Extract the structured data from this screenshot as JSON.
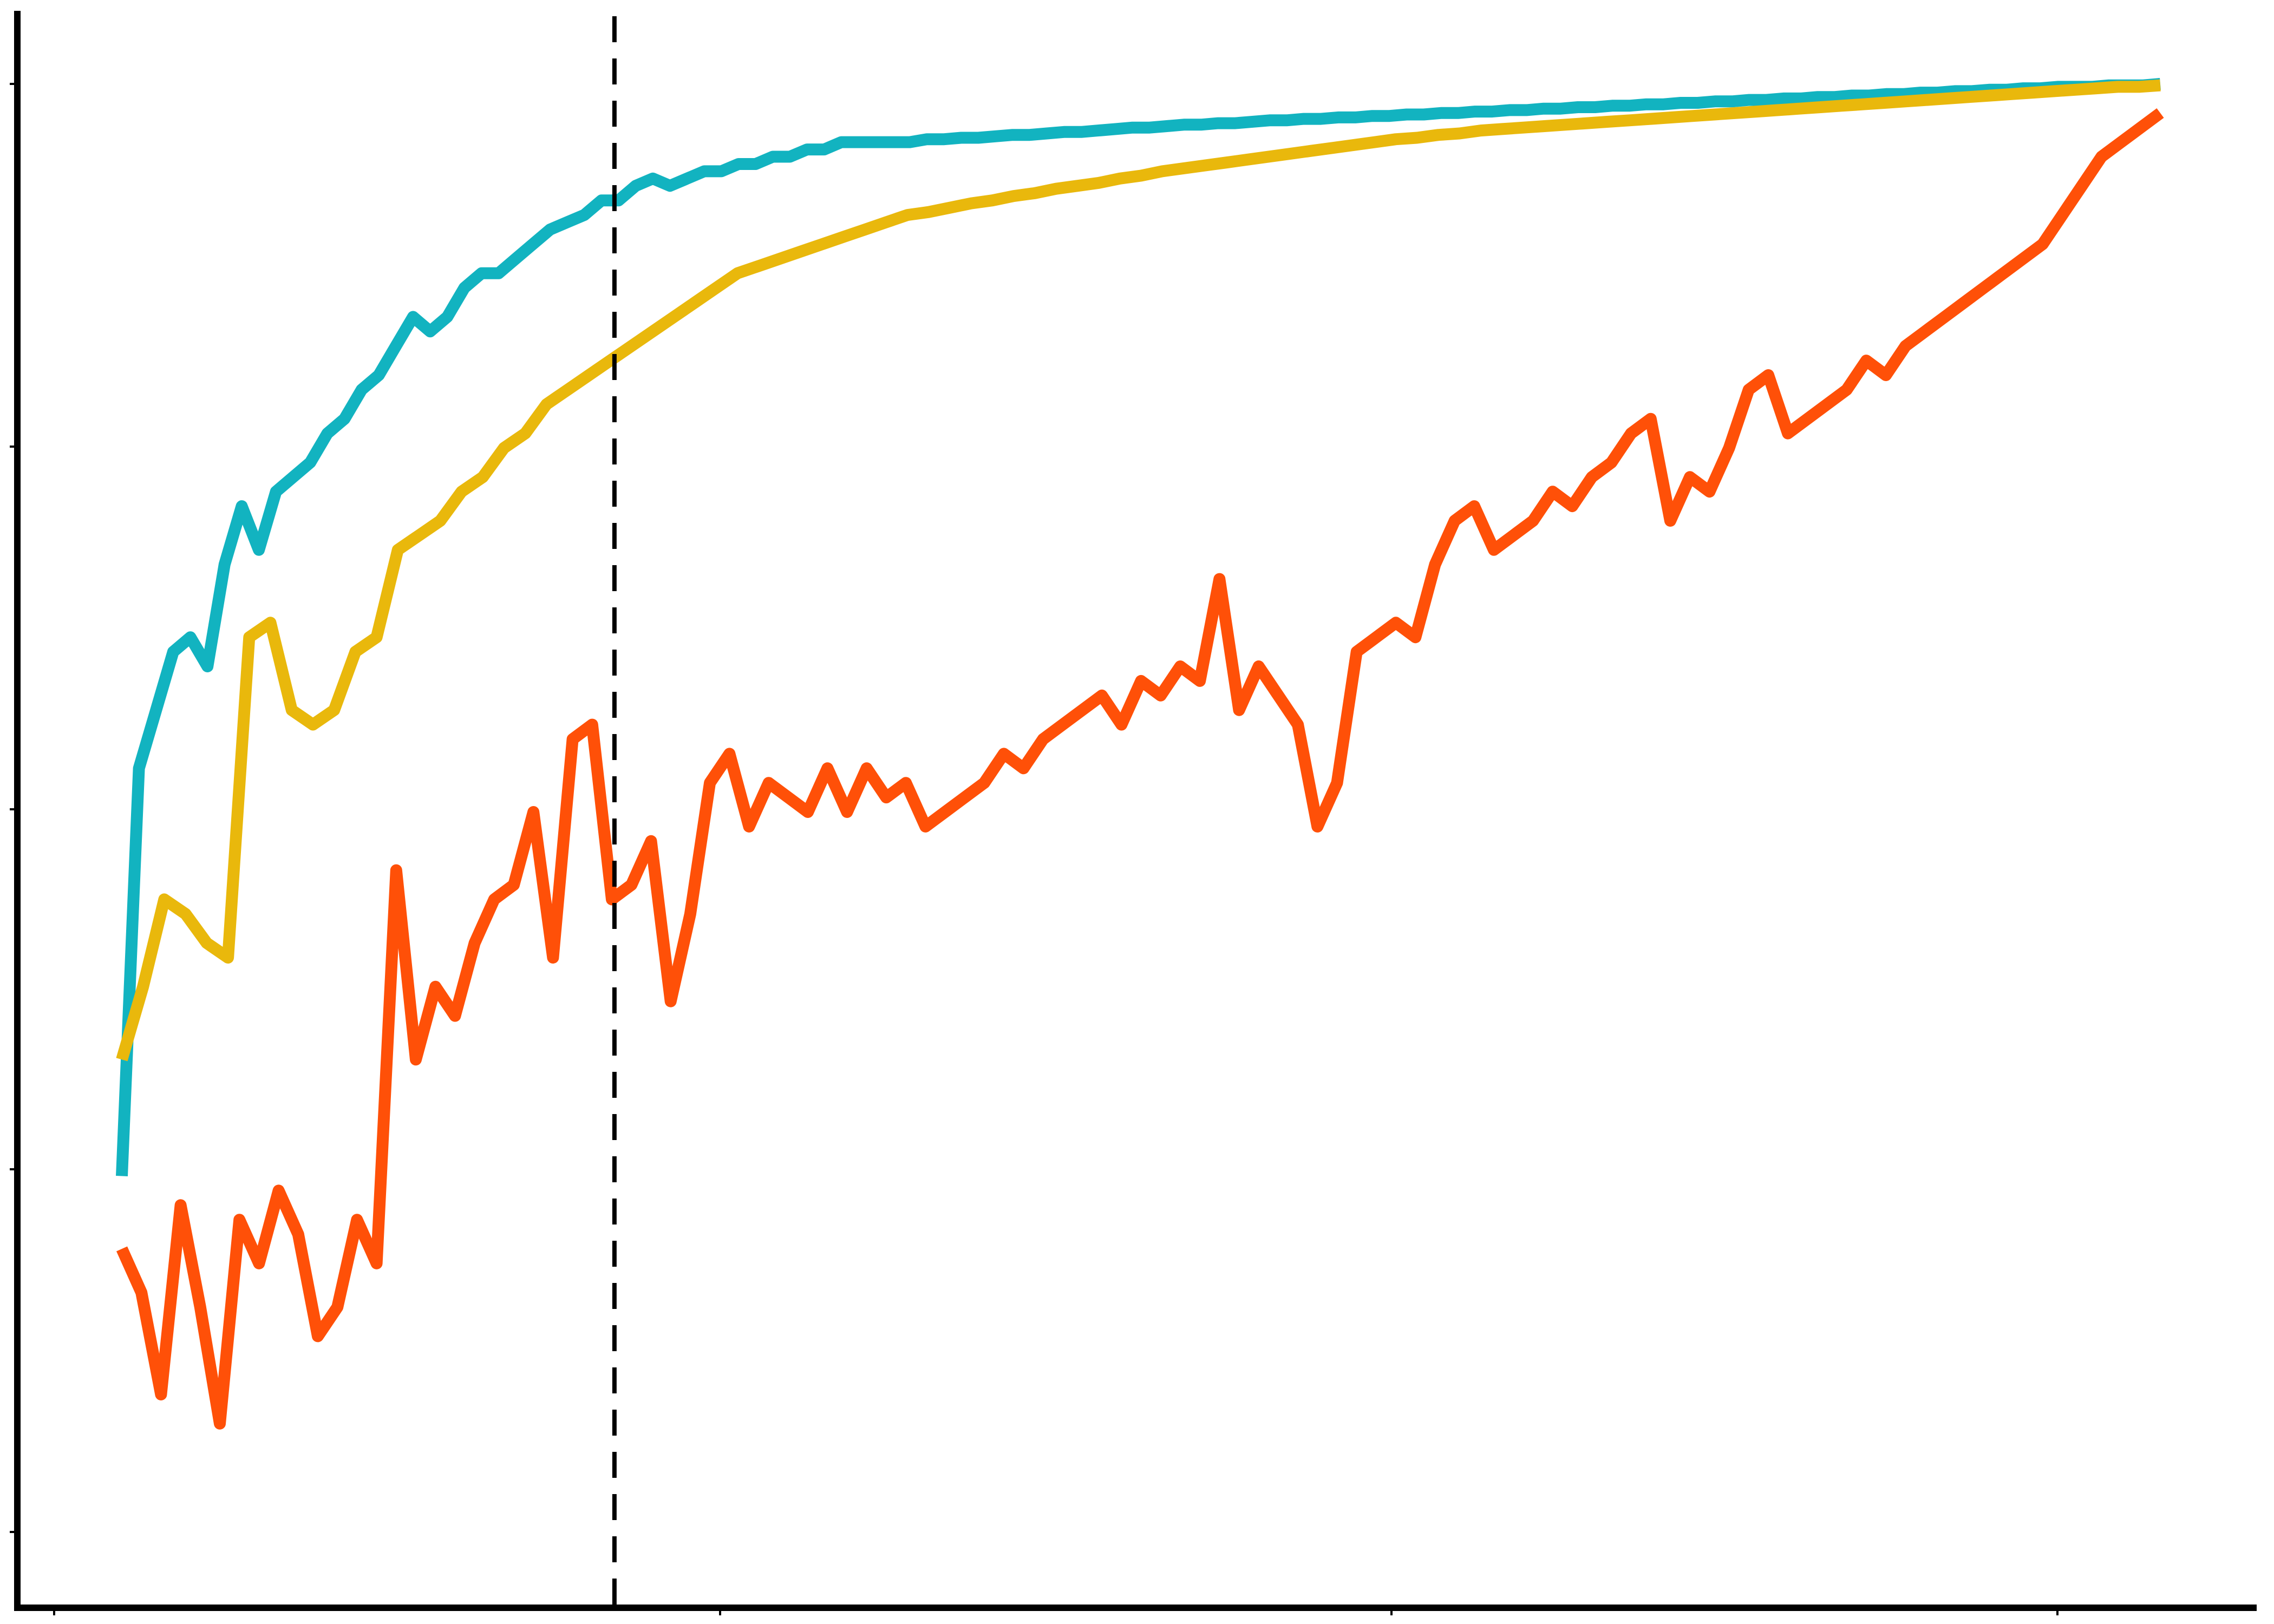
{
  "chart_data": {
    "type": "line",
    "title": "",
    "xlabel": "",
    "ylabel": "",
    "grid": false,
    "legend": "none",
    "x_range": [
      0,
      168
    ],
    "y_range": [
      0,
      1
    ],
    "x_ticks": [
      0,
      50,
      100,
      150
    ],
    "y_ticks": [
      0,
      0.22,
      0.44,
      0.66,
      0.88
    ],
    "vline_x": 40.6,
    "series": [
      {
        "color": "#12b3c0",
        "values": [
          0.25,
          0.53,
          0.57,
          0.61,
          0.62,
          0.6,
          0.67,
          0.71,
          0.68,
          0.72,
          0.73,
          0.74,
          0.76,
          0.77,
          0.79,
          0.8,
          0.82,
          0.84,
          0.83,
          0.84,
          0.86,
          0.87,
          0.87,
          0.88,
          0.89,
          0.9,
          0.905,
          0.91,
          0.92,
          0.92,
          0.93,
          0.935,
          0.93,
          0.935,
          0.94,
          0.94,
          0.945,
          0.945,
          0.95,
          0.95,
          0.955,
          0.955,
          0.96,
          0.96,
          0.96,
          0.96,
          0.96,
          0.962,
          0.962,
          0.963,
          0.963,
          0.964,
          0.965,
          0.965,
          0.966,
          0.967,
          0.967,
          0.968,
          0.969,
          0.97,
          0.97,
          0.971,
          0.972,
          0.972,
          0.973,
          0.973,
          0.974,
          0.975,
          0.975,
          0.976,
          0.976,
          0.977,
          0.977,
          0.978,
          0.978,
          0.979,
          0.979,
          0.98,
          0.98,
          0.981,
          0.981,
          0.982,
          0.982,
          0.983,
          0.983,
          0.984,
          0.984,
          0.985,
          0.985,
          0.986,
          0.986,
          0.987,
          0.987,
          0.988,
          0.988,
          0.989,
          0.989,
          0.99,
          0.99,
          0.991,
          0.991,
          0.992,
          0.992,
          0.993,
          0.993,
          0.994,
          0.994,
          0.995,
          0.995,
          0.996,
          0.996,
          0.997,
          0.997,
          0.998,
          0.998,
          0.998,
          0.999,
          0.999,
          0.999,
          1.0
        ]
      },
      {
        "color": "#e9b80c",
        "values": [
          0.33,
          0.38,
          0.44,
          0.43,
          0.41,
          0.4,
          0.62,
          0.63,
          0.57,
          0.56,
          0.57,
          0.61,
          0.62,
          0.68,
          0.69,
          0.7,
          0.72,
          0.73,
          0.75,
          0.76,
          0.78,
          0.79,
          0.8,
          0.81,
          0.82,
          0.83,
          0.84,
          0.85,
          0.86,
          0.87,
          0.875,
          0.88,
          0.885,
          0.89,
          0.895,
          0.9,
          0.905,
          0.91,
          0.912,
          0.915,
          0.918,
          0.92,
          0.923,
          0.925,
          0.928,
          0.93,
          0.932,
          0.935,
          0.937,
          0.94,
          0.942,
          0.944,
          0.946,
          0.948,
          0.95,
          0.952,
          0.954,
          0.956,
          0.958,
          0.96,
          0.962,
          0.963,
          0.965,
          0.966,
          0.968,
          0.969,
          0.97,
          0.971,
          0.972,
          0.973,
          0.974,
          0.975,
          0.976,
          0.977,
          0.978,
          0.979,
          0.98,
          0.981,
          0.982,
          0.983,
          0.984,
          0.985,
          0.986,
          0.987,
          0.988,
          0.989,
          0.99,
          0.991,
          0.992,
          0.993,
          0.994,
          0.995,
          0.996,
          0.997,
          0.998,
          0.998,
          0.999
        ]
      },
      {
        "color": "#ff5008",
        "values": [
          0.2,
          0.17,
          0.1,
          0.23,
          0.16,
          0.08,
          0.22,
          0.19,
          0.24,
          0.21,
          0.14,
          0.16,
          0.22,
          0.19,
          0.46,
          0.33,
          0.38,
          0.36,
          0.41,
          0.44,
          0.45,
          0.5,
          0.4,
          0.55,
          0.56,
          0.44,
          0.45,
          0.48,
          0.37,
          0.43,
          0.52,
          0.54,
          0.49,
          0.52,
          0.51,
          0.5,
          0.53,
          0.5,
          0.53,
          0.51,
          0.52,
          0.49,
          0.5,
          0.51,
          0.52,
          0.54,
          0.53,
          0.55,
          0.56,
          0.57,
          0.58,
          0.56,
          0.59,
          0.58,
          0.6,
          0.59,
          0.66,
          0.57,
          0.6,
          0.58,
          0.56,
          0.49,
          0.52,
          0.61,
          0.62,
          0.63,
          0.62,
          0.67,
          0.7,
          0.71,
          0.68,
          0.69,
          0.7,
          0.72,
          0.71,
          0.73,
          0.74,
          0.76,
          0.77,
          0.7,
          0.73,
          0.72,
          0.75,
          0.79,
          0.8,
          0.76,
          0.77,
          0.78,
          0.79,
          0.81,
          0.8,
          0.82,
          0.83,
          0.84,
          0.85,
          0.86,
          0.87,
          0.88,
          0.89,
          0.91,
          0.93,
          0.95,
          0.96,
          0.97,
          0.98
        ]
      }
    ]
  }
}
